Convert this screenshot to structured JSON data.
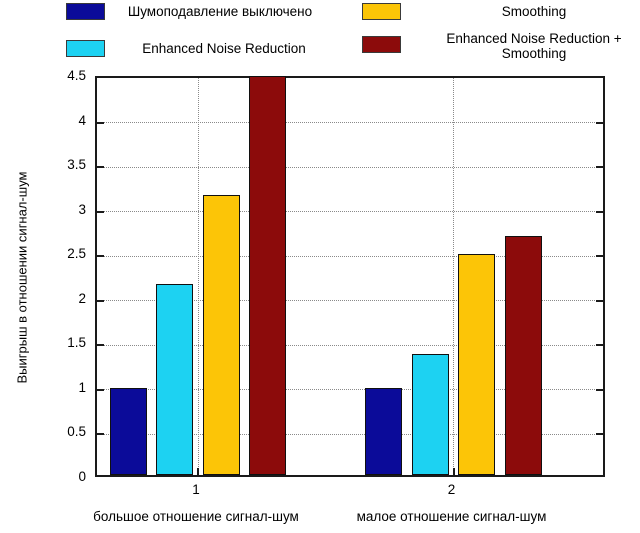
{
  "chart_data": {
    "type": "bar",
    "title": "",
    "categories": [
      "1",
      "2"
    ],
    "category_captions": [
      "большое отношение сигнал-шум",
      "малое отношение сигнал-шум"
    ],
    "series": [
      {
        "name": "Шумоподавление выключено",
        "color": "#0b0b99",
        "values": [
          1.0,
          1.0
        ]
      },
      {
        "name": "Enhanced Noise Reduction",
        "color": "#1dd2f2",
        "values": [
          2.17,
          1.38
        ]
      },
      {
        "name": "Smoothing",
        "color": "#fcc507",
        "values": [
          3.17,
          2.5
        ]
      },
      {
        "name": "Enhanced Noise Reduction + Smoothing",
        "color": "#8c0b0b",
        "values": [
          4.5,
          2.7
        ]
      }
    ],
    "xlabel": "",
    "ylabel": "Выигрыш в отношении сигнал-шум",
    "ylim": [
      0,
      4.5
    ],
    "ytick_step": 0.5,
    "yticks": [
      "0",
      "0.5",
      "1",
      "1.5",
      "2",
      "2.5",
      "3",
      "3.5",
      "4",
      "4.5"
    ],
    "grid": "dotted",
    "legend_position": "top",
    "axis_color": "#1a1a1a",
    "grid_color": "#8a8a8a"
  }
}
